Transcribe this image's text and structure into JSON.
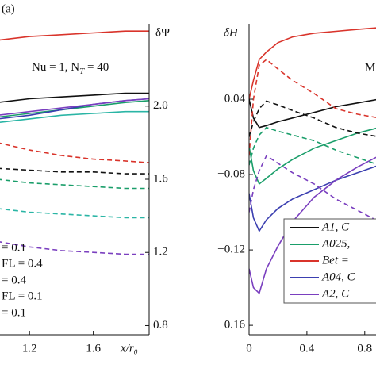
{
  "chart_data": [
    {
      "type": "line",
      "panel_label": "(a)",
      "ylabel": "δΨ",
      "xlabel": "x/r₀",
      "annotation": [
        "Nu = 1, N",
        "T",
        " = 40"
      ],
      "legend_texts": [
        "= 0.1",
        "FL = 0.4",
        "= 0.4",
        "FL = 0.1",
        "= 0.1"
      ],
      "xlim": [
        1.0,
        1.95
      ],
      "xticks": [
        1.2,
        1.6
      ],
      "ylim": [
        0.75,
        2.45
      ],
      "yticks": [
        0.8,
        1.2,
        1.6,
        {
          "value": 2.0,
          "label": "2.0"
        }
      ],
      "x": [
        1.0,
        1.2,
        1.4,
        1.6,
        1.8,
        1.95
      ],
      "series": [
        {
          "color": "#d9342b",
          "style": "solid",
          "values": [
            2.36,
            2.38,
            2.39,
            2.4,
            2.41,
            2.41
          ]
        },
        {
          "color": "#111111",
          "style": "solid",
          "values": [
            2.02,
            2.04,
            2.05,
            2.06,
            2.07,
            2.07
          ]
        },
        {
          "color": "#1a9e6a",
          "style": "solid",
          "values": [
            1.94,
            1.96,
            1.98,
            2.0,
            2.02,
            2.03
          ]
        },
        {
          "color": "#3b3fb0",
          "style": "solid",
          "values": [
            1.93,
            1.95,
            1.98,
            2.01,
            2.03,
            2.04
          ]
        },
        {
          "color": "#7a3fbf",
          "style": "solid",
          "values": [
            1.95,
            1.97,
            1.99,
            2.01,
            2.03,
            2.04
          ]
        },
        {
          "color": "#2ab5a5",
          "style": "solid",
          "values": [
            1.91,
            1.93,
            1.95,
            1.96,
            1.97,
            1.97
          ]
        },
        {
          "color": "#d9342b",
          "style": "dashed",
          "values": [
            1.8,
            1.76,
            1.73,
            1.71,
            1.7,
            1.69
          ]
        },
        {
          "color": "#111111",
          "style": "dashed",
          "values": [
            1.66,
            1.65,
            1.64,
            1.64,
            1.63,
            1.63
          ]
        },
        {
          "color": "#1a9e6a",
          "style": "dashed",
          "values": [
            1.6,
            1.58,
            1.57,
            1.56,
            1.55,
            1.55
          ]
        },
        {
          "color": "#2ab5a5",
          "style": "dashed",
          "values": [
            1.44,
            1.42,
            1.41,
            1.4,
            1.39,
            1.39
          ]
        },
        {
          "color": "#7a3fbf",
          "style": "dashed",
          "values": [
            1.26,
            1.23,
            1.21,
            1.2,
            1.19,
            1.19
          ]
        }
      ]
    },
    {
      "type": "line",
      "ylabel": "δH",
      "annotation": "M",
      "xlim": [
        0,
        0.9
      ],
      "xticks": [
        0,
        0.4,
        0.8
      ],
      "ylim": [
        -0.165,
        0
      ],
      "yticks": [
        {
          "value": -0.04,
          "label": "−0.04"
        },
        {
          "value": -0.08,
          "label": "−0.08"
        },
        {
          "value": -0.12,
          "label": "−0.12"
        },
        {
          "value": -0.16,
          "label": "−0.16"
        }
      ],
      "x": [
        0,
        0.03,
        0.07,
        0.12,
        0.2,
        0.3,
        0.45,
        0.6,
        0.75,
        0.9
      ],
      "series": [
        {
          "name": "A1, C",
          "color": "#111111",
          "style": "solid",
          "values": [
            -0.04,
            -0.05,
            -0.055,
            -0.054,
            -0.052,
            -0.05,
            -0.047,
            -0.044,
            -0.042,
            -0.04
          ]
        },
        {
          "name": "A025,",
          "color": "#1a9e6a",
          "style": "solid",
          "values": [
            -0.065,
            -0.078,
            -0.085,
            -0.082,
            -0.077,
            -0.072,
            -0.066,
            -0.062,
            -0.058,
            -0.055
          ]
        },
        {
          "name": "Bet =",
          "color": "#d9342b",
          "style": "solid",
          "values": [
            -0.04,
            -0.03,
            -0.019,
            -0.015,
            -0.01,
            -0.007,
            -0.005,
            -0.004,
            -0.003,
            -0.002
          ]
        },
        {
          "name": "A04, C",
          "color": "#3b3fb0",
          "style": "solid",
          "values": [
            -0.09,
            -0.103,
            -0.11,
            -0.104,
            -0.098,
            -0.093,
            -0.088,
            -0.083,
            -0.079,
            -0.075
          ]
        },
        {
          "name": "A2, C",
          "color": "#7a3fbf",
          "style": "solid",
          "values": [
            -0.13,
            -0.14,
            -0.143,
            -0.13,
            -0.118,
            -0.105,
            -0.092,
            -0.083,
            -0.076,
            -0.07
          ]
        },
        {
          "color": "#d9342b",
          "style": "dashed",
          "values": [
            -0.07,
            -0.04,
            -0.022,
            -0.019,
            -0.024,
            -0.03,
            -0.037,
            -0.045,
            -0.048,
            -0.05
          ]
        },
        {
          "color": "#111111",
          "style": "dashed",
          "values": [
            -0.06,
            -0.052,
            -0.045,
            -0.041,
            -0.043,
            -0.046,
            -0.05,
            -0.055,
            -0.058,
            -0.06
          ]
        },
        {
          "color": "#1a9e6a",
          "style": "dashed",
          "values": [
            -0.075,
            -0.066,
            -0.059,
            -0.055,
            -0.057,
            -0.059,
            -0.062,
            -0.067,
            -0.071,
            -0.075
          ]
        },
        {
          "color": "#7a3fbf",
          "style": "dashed",
          "values": [
            -0.1,
            -0.088,
            -0.078,
            -0.07,
            -0.074,
            -0.079,
            -0.085,
            -0.093,
            -0.099,
            -0.105
          ]
        }
      ]
    }
  ]
}
